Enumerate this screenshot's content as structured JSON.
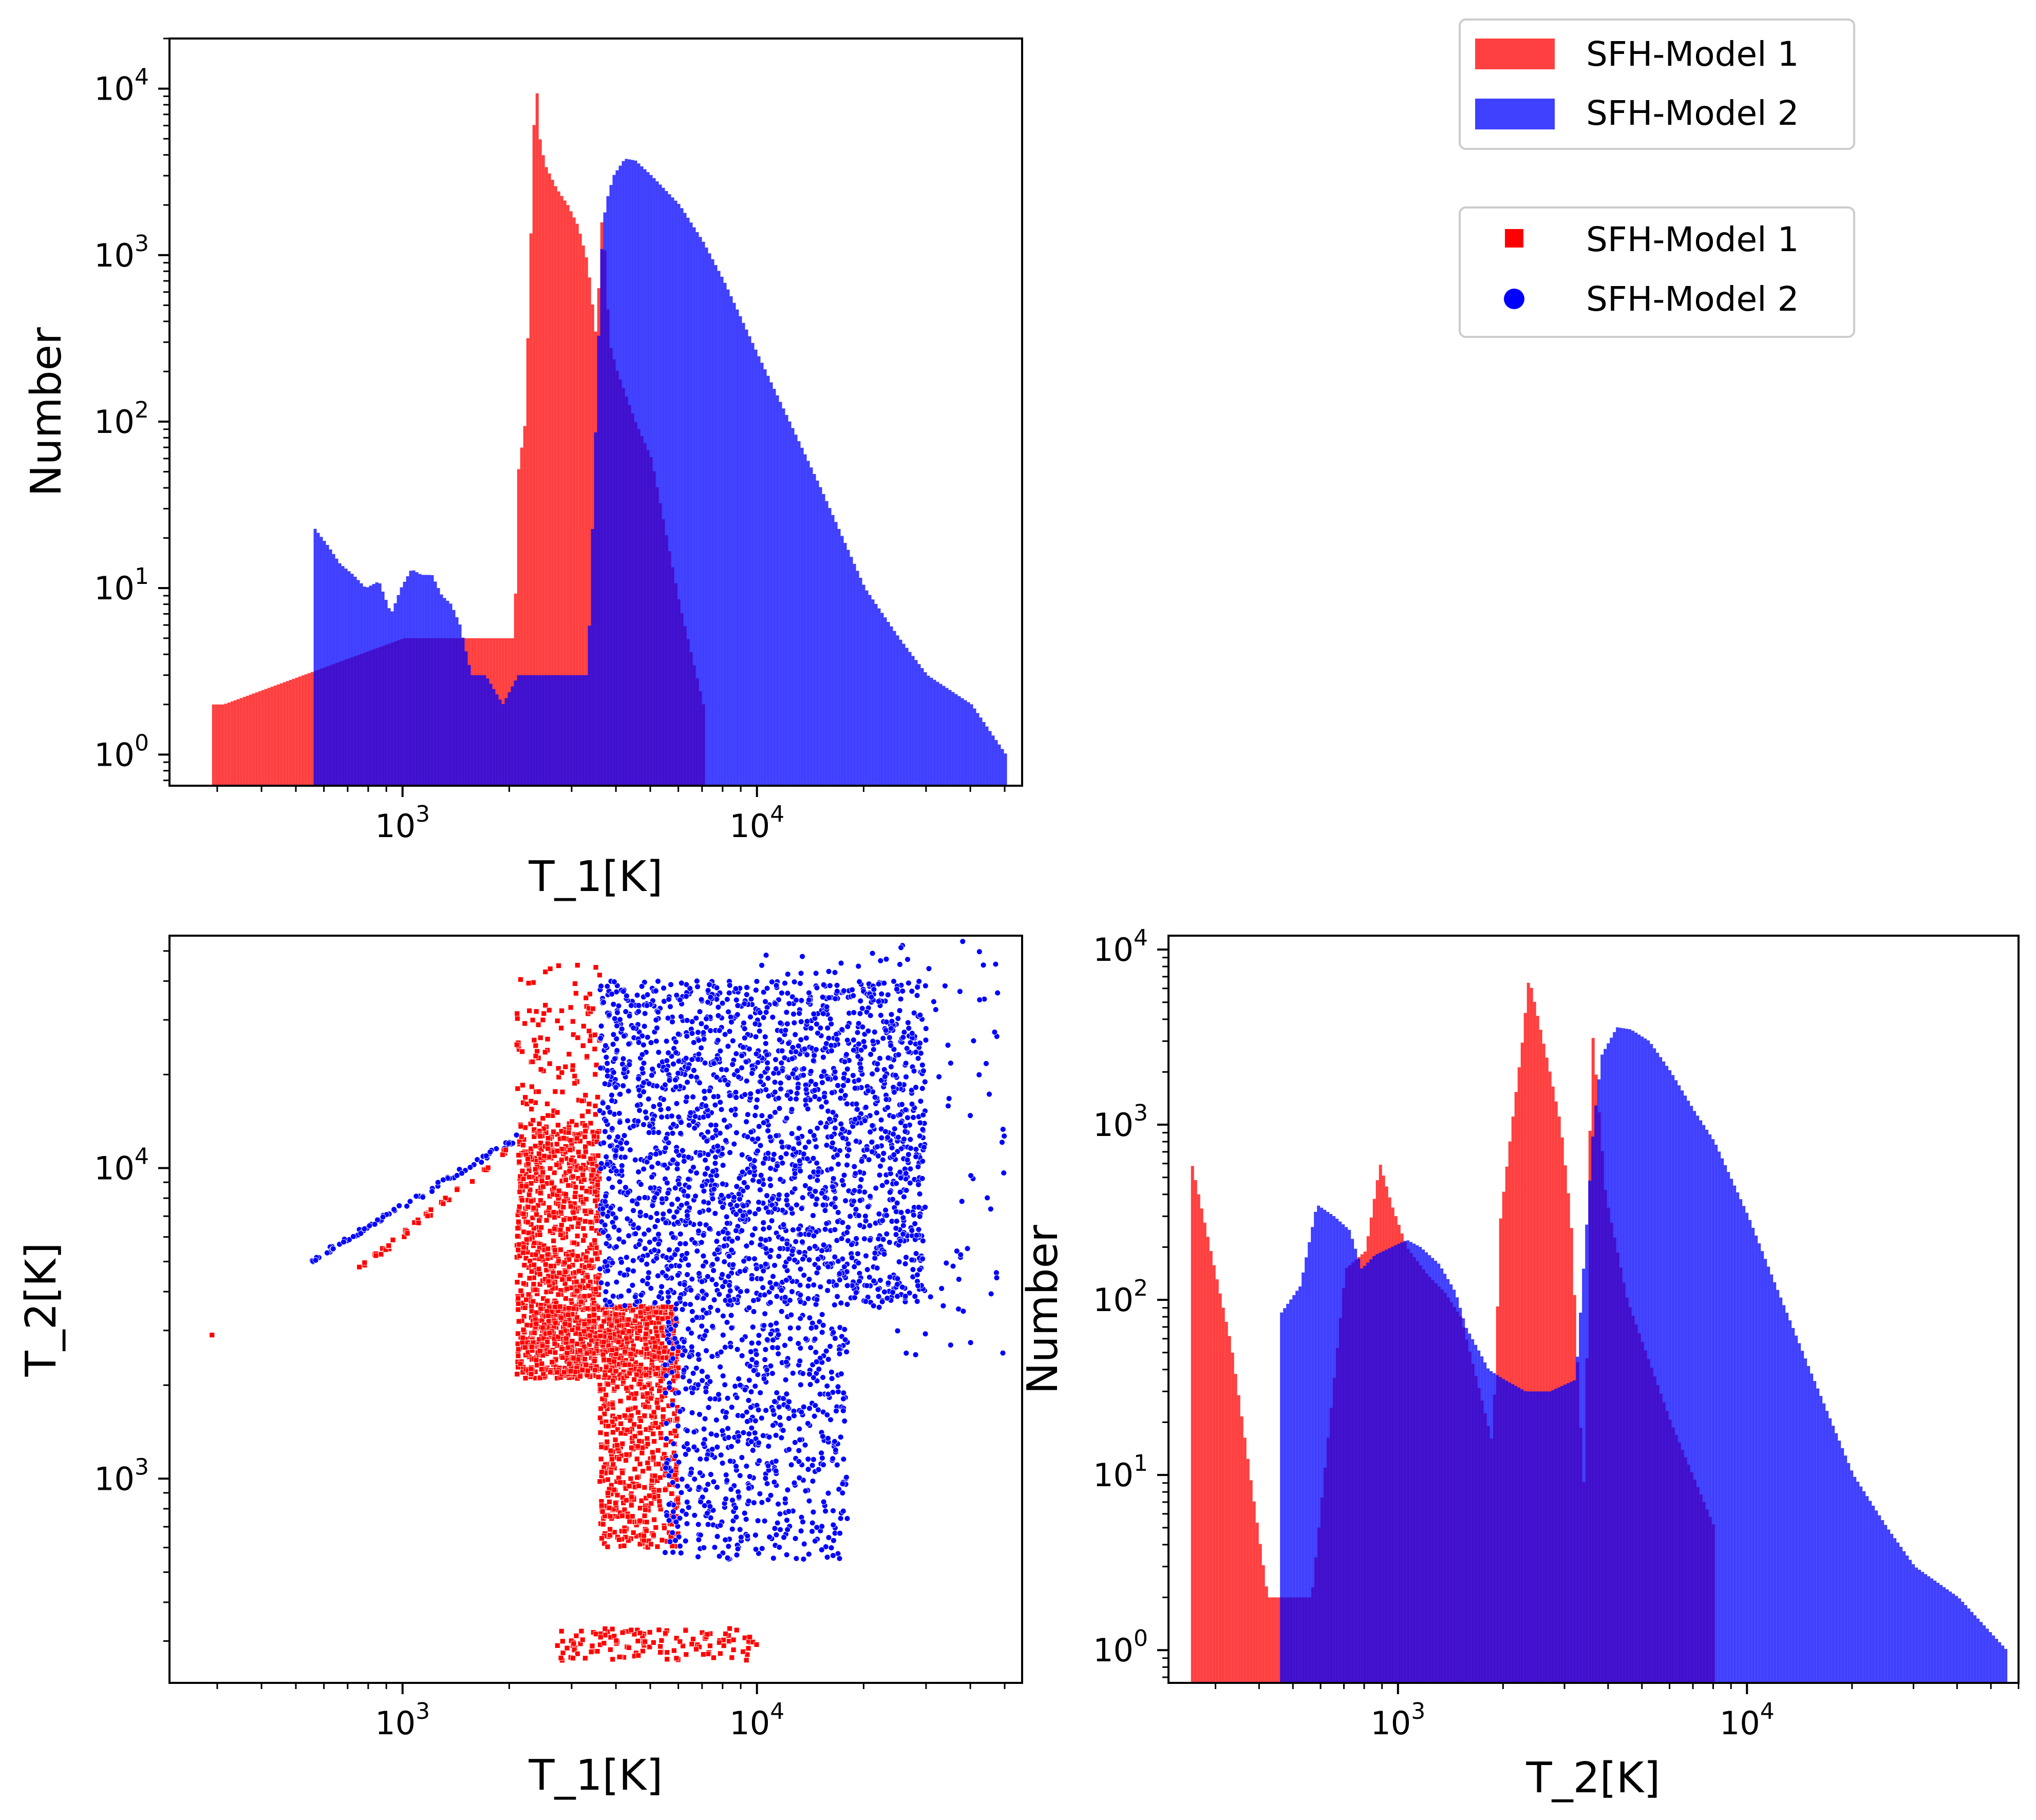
{
  "colors": {
    "model1": "#ff0000",
    "model2": "#0000ff",
    "overlap": "#3300bb"
  },
  "legends": {
    "histogram": [
      {
        "label": "SFH-Model 1",
        "color": "#ff0000",
        "marker": "patch"
      },
      {
        "label": "SFH-Model 2",
        "color": "#0000ff",
        "marker": "patch"
      }
    ],
    "scatter": [
      {
        "label": "SFH-Model 1",
        "color": "#ff0000",
        "marker": "square"
      },
      {
        "label": "SFH-Model 2",
        "color": "#0000ff",
        "marker": "circle"
      }
    ]
  },
  "chart_data": [
    {
      "id": "hist-t1",
      "type": "bar",
      "subtype": "histogram",
      "xlabel": "T_1[K]",
      "ylabel": "Number",
      "xscale": "log",
      "yscale": "log",
      "xlim": [
        220,
        56000
      ],
      "ylim": [
        0.65,
        20000
      ],
      "xticks": [
        {
          "base": "10",
          "exp": "3",
          "value": 1000
        },
        {
          "base": "10",
          "exp": "4",
          "value": 10000
        }
      ],
      "yticks": [
        {
          "base": "10",
          "exp": "0",
          "value": 1
        },
        {
          "base": "10",
          "exp": "1",
          "value": 10
        },
        {
          "base": "10",
          "exp": "2",
          "value": 100
        },
        {
          "base": "10",
          "exp": "3",
          "value": 1000
        },
        {
          "base": "10",
          "exp": "4",
          "value": 10000
        }
      ],
      "series": [
        {
          "name": "SFH-Model 1",
          "points": [
            [
              290,
              2
            ],
            [
              310,
              2
            ],
            [
              1000,
              5
            ],
            [
              2050,
              5
            ],
            [
              2100,
              50
            ],
            [
              2200,
              100
            ],
            [
              2300,
              2500
            ],
            [
              2350,
              13000
            ],
            [
              2420,
              5000
            ],
            [
              2500,
              3500
            ],
            [
              2700,
              2500
            ],
            [
              2900,
              2000
            ],
            [
              3100,
              1500
            ],
            [
              3300,
              900
            ],
            [
              3500,
              300
            ],
            [
              3600,
              1700
            ],
            [
              3700,
              1000
            ],
            [
              3800,
              300
            ],
            [
              4000,
              200
            ],
            [
              4500,
              100
            ],
            [
              5000,
              60
            ],
            [
              6000,
              8
            ],
            [
              7000,
              2
            ]
          ]
        },
        {
          "name": "SFH-Model 2",
          "points": [
            [
              550,
              24
            ],
            [
              610,
              18
            ],
            [
              660,
              14
            ],
            [
              720,
              12
            ],
            [
              780,
              10
            ],
            [
              850,
              11
            ],
            [
              920,
              7
            ],
            [
              980,
              10
            ],
            [
              1050,
              13
            ],
            [
              1120,
              12
            ],
            [
              1200,
              12
            ],
            [
              1280,
              9
            ],
            [
              1360,
              8
            ],
            [
              1440,
              6
            ],
            [
              1550,
              3
            ],
            [
              1700,
              3
            ],
            [
              1900,
              2
            ],
            [
              2100,
              3
            ],
            [
              2400,
              3
            ],
            [
              2800,
              3
            ],
            [
              3300,
              3
            ],
            [
              3600,
              1000
            ],
            [
              3700,
              2000
            ],
            [
              3900,
              3000
            ],
            [
              4200,
              3800
            ],
            [
              4500,
              3700
            ],
            [
              5000,
              3000
            ],
            [
              6000,
              2000
            ],
            [
              7000,
              1200
            ],
            [
              8000,
              700
            ],
            [
              10000,
              250
            ],
            [
              12000,
              110
            ],
            [
              15000,
              40
            ],
            [
              20000,
              10
            ],
            [
              25000,
              5
            ],
            [
              30000,
              3
            ],
            [
              40000,
              2
            ],
            [
              50000,
              1
            ]
          ]
        }
      ]
    },
    {
      "id": "scatter-t1-t2",
      "type": "scatter",
      "xlabel": "T_1[K]",
      "ylabel": "T_2[K]",
      "xscale": "log",
      "yscale": "log",
      "xlim": [
        220,
        56000
      ],
      "ylim": [
        220,
        56000
      ],
      "xticks": [
        {
          "base": "10",
          "exp": "3",
          "value": 1000
        },
        {
          "base": "10",
          "exp": "4",
          "value": 10000
        }
      ],
      "yticks": [
        {
          "base": "10",
          "exp": "3",
          "value": 1000
        },
        {
          "base": "10",
          "exp": "4",
          "value": 10000
        }
      ],
      "regions": [
        {
          "series": "SFH-Model 1",
          "x": [
            2100,
            3600
          ],
          "y": [
            2100,
            14000
          ],
          "count": 950
        },
        {
          "series": "SFH-Model 1",
          "x": [
            2300,
            6000
          ],
          "y": [
            2100,
            3600
          ],
          "count": 450
        },
        {
          "series": "SFH-Model 1",
          "x": [
            3600,
            6000
          ],
          "y": [
            600,
            3600
          ],
          "count": 650
        },
        {
          "series": "SFH-Model 1",
          "x": [
            2100,
            3600
          ],
          "y": [
            14000,
            45000
          ],
          "count": 110
        },
        {
          "series": "SFH-Model 1",
          "x": [
            2700,
            10000
          ],
          "y": [
            260,
            330
          ],
          "count": 130
        },
        {
          "series": "SFH-Model 2",
          "x": [
            3600,
            30000
          ],
          "y": [
            3600,
            40000
          ],
          "count": 2200
        },
        {
          "series": "SFH-Model 2",
          "x": [
            5500,
            18000
          ],
          "y": [
            550,
            3600
          ],
          "count": 650
        },
        {
          "series": "SFH-Model 2",
          "x": [
            10000,
            50000
          ],
          "y": [
            2500,
            55000
          ],
          "count": 180
        }
      ],
      "diagonal_tracks": [
        {
          "series": "SFH-Model 2",
          "from": [
            550,
            5000
          ],
          "to": [
            2100,
            12500
          ],
          "count": 80
        },
        {
          "series": "SFH-Model 1",
          "from": [
            720,
            4500
          ],
          "to": [
            2000,
            11500
          ],
          "count": 45
        }
      ],
      "outliers": [
        {
          "series": "SFH-Model 1",
          "x": 290,
          "y": 2900
        }
      ]
    },
    {
      "id": "hist-t2",
      "type": "bar",
      "subtype": "histogram",
      "xlabel": "T_2[K]",
      "ylabel": "Number",
      "xscale": "log",
      "yscale": "log",
      "xlim": [
        220,
        60000
      ],
      "ylim": [
        0.65,
        12000
      ],
      "xticks": [
        {
          "base": "10",
          "exp": "3",
          "value": 1000
        },
        {
          "base": "10",
          "exp": "4",
          "value": 10000
        }
      ],
      "yticks": [
        {
          "base": "10",
          "exp": "0",
          "value": 1
        },
        {
          "base": "10",
          "exp": "1",
          "value": 10
        },
        {
          "base": "10",
          "exp": "2",
          "value": 100
        },
        {
          "base": "10",
          "exp": "3",
          "value": 1000
        },
        {
          "base": "10",
          "exp": "4",
          "value": 10000
        }
      ],
      "series": [
        {
          "name": "SFH-Model 1",
          "points": [
            [
              250,
              700
            ],
            [
              330,
              55
            ],
            [
              420,
              2
            ],
            [
              560,
              2
            ],
            [
              700,
              150
            ],
            [
              800,
              190
            ],
            [
              880,
              600
            ],
            [
              950,
              350
            ],
            [
              1050,
              200
            ],
            [
              1200,
              140
            ],
            [
              1350,
              110
            ],
            [
              1500,
              80
            ],
            [
              1700,
              30
            ],
            [
              1850,
              15
            ],
            [
              1950,
              300
            ],
            [
              2100,
              1000
            ],
            [
              2250,
              3000
            ],
            [
              2350,
              7000
            ],
            [
              2500,
              4000
            ],
            [
              2700,
              2000
            ],
            [
              2900,
              1000
            ],
            [
              3100,
              300
            ],
            [
              3300,
              20
            ],
            [
              3400,
              7
            ],
            [
              3550,
              4000
            ],
            [
              3700,
              1500
            ],
            [
              3900,
              400
            ],
            [
              4500,
              100
            ],
            [
              6000,
              20
            ],
            [
              8000,
              5
            ]
          ]
        },
        {
          "name": "SFH-Model 2",
          "points": [
            [
              450,
              80
            ],
            [
              520,
              120
            ],
            [
              580,
              350
            ],
            [
              650,
              300
            ],
            [
              720,
              250
            ],
            [
              780,
              150
            ],
            [
              850,
              180
            ],
            [
              950,
              200
            ],
            [
              1050,
              220
            ],
            [
              1150,
              200
            ],
            [
              1300,
              160
            ],
            [
              1450,
              110
            ],
            [
              1550,
              70
            ],
            [
              1700,
              50
            ],
            [
              1800,
              40
            ],
            [
              2000,
              35
            ],
            [
              2300,
              30
            ],
            [
              2700,
              30
            ],
            [
              3200,
              35
            ],
            [
              3600,
              1000
            ],
            [
              3800,
              2500
            ],
            [
              4200,
              3600
            ],
            [
              4600,
              3500
            ],
            [
              5200,
              3000
            ],
            [
              6000,
              2000
            ],
            [
              7000,
              1200
            ],
            [
              8000,
              800
            ],
            [
              10000,
              300
            ],
            [
              12000,
              120
            ],
            [
              15000,
              40
            ],
            [
              20000,
              10
            ],
            [
              25000,
              5
            ],
            [
              30000,
              3
            ],
            [
              40000,
              2
            ],
            [
              55000,
              1
            ]
          ]
        }
      ]
    }
  ]
}
